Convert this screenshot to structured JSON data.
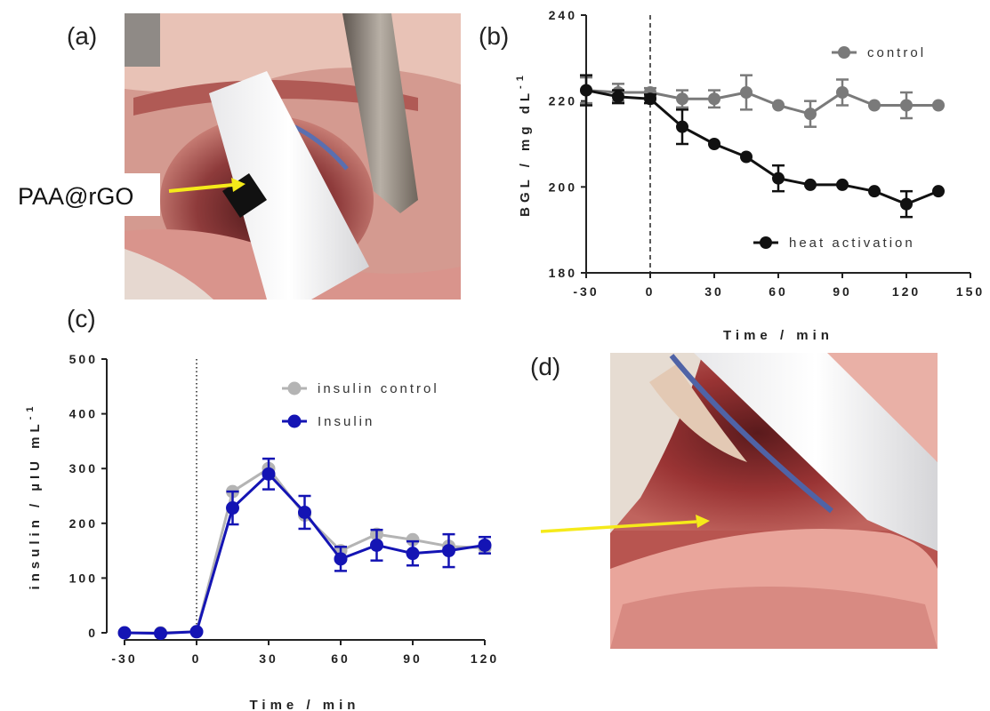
{
  "panels": {
    "a": "(a)",
    "b": "(b)",
    "c": "(c)",
    "d": "(d)"
  },
  "photo_a": {
    "callout": "PAA@rGO",
    "arrow_color": "#f5ea1a"
  },
  "photo_d": {
    "arrow_color": "#f5ea1a"
  },
  "chart_data": [
    {
      "panel": "b",
      "type": "line",
      "xlabel": "Time / min",
      "ylabel": "BGL / mg dL",
      "ylabel_sup": "-1",
      "xlim": [
        -30,
        150
      ],
      "ylim": [
        180,
        240
      ],
      "xticks": [
        -30,
        0,
        30,
        60,
        90,
        120,
        150
      ],
      "yticks": [
        180,
        200,
        220,
        240
      ],
      "vline_x": 0,
      "legend_position": "right",
      "series": [
        {
          "name": "control",
          "color": "#7a7a7a",
          "x": [
            -30,
            -15,
            0,
            15,
            30,
            45,
            60,
            75,
            90,
            105,
            120,
            135
          ],
          "y": [
            222.5,
            222,
            222,
            220.5,
            220.5,
            222,
            219,
            217,
            222,
            219,
            219,
            219
          ],
          "err": [
            3,
            2,
            1,
            2,
            2,
            4,
            0,
            3,
            3,
            0,
            3,
            0
          ]
        },
        {
          "name": "heat activation",
          "color": "#111111",
          "x": [
            -30,
            -15,
            0,
            15,
            30,
            45,
            60,
            75,
            90,
            105,
            120,
            135
          ],
          "y": [
            222.5,
            221,
            220.5,
            214,
            210,
            207,
            202,
            200.5,
            200.5,
            199,
            196,
            199
          ],
          "err": [
            3.5,
            1.5,
            1,
            4,
            0,
            0,
            3,
            0,
            0,
            0,
            3,
            0
          ]
        }
      ]
    },
    {
      "panel": "c",
      "type": "line",
      "xlabel": "Time / min",
      "ylabel": "insulin / µIU mL",
      "ylabel_sup": "-1",
      "xlim": [
        -30,
        120
      ],
      "ylim": [
        0,
        500
      ],
      "xticks": [
        -30,
        0,
        30,
        60,
        90,
        120
      ],
      "yticks": [
        0,
        100,
        200,
        300,
        400,
        500
      ],
      "vline_x": 0,
      "legend_position": "top-right",
      "series": [
        {
          "name": "insulin control",
          "color": "#b4b4b4",
          "x": [
            -30,
            -15,
            0,
            15,
            30,
            45,
            60,
            75,
            90,
            105,
            120
          ],
          "y": [
            0,
            0,
            2,
            258,
            300,
            215,
            150,
            180,
            170,
            158,
            155
          ],
          "err": [
            0,
            0,
            0,
            0,
            0,
            0,
            0,
            0,
            0,
            0,
            0
          ]
        },
        {
          "name": "Insulin",
          "color": "#1414b4",
          "x": [
            -30,
            -15,
            0,
            15,
            30,
            45,
            60,
            75,
            90,
            105,
            120
          ],
          "y": [
            0,
            -1,
            2,
            228,
            290,
            220,
            135,
            160,
            145,
            150,
            160
          ],
          "err": [
            0,
            0,
            0,
            30,
            28,
            30,
            22,
            28,
            22,
            30,
            15
          ]
        }
      ]
    }
  ]
}
